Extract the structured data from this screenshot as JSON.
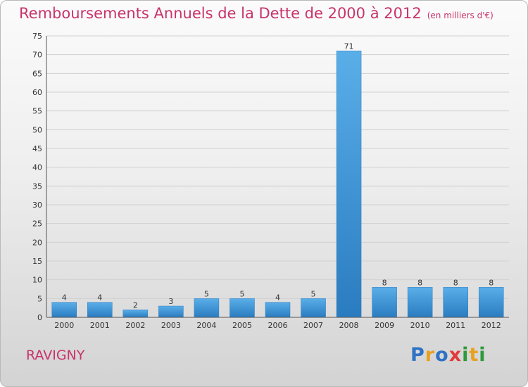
{
  "chart_data": {
    "type": "bar",
    "title": "Remboursements Annuels de la Dette de 2000 à 2012",
    "subtitle": "(en milliers d'€)",
    "categories": [
      "2000",
      "2001",
      "2002",
      "2003",
      "2004",
      "2005",
      "2006",
      "2007",
      "2008",
      "2009",
      "2010",
      "2011",
      "2012"
    ],
    "values": [
      4,
      4,
      2,
      3,
      5,
      5,
      4,
      5,
      71,
      8,
      8,
      8,
      8
    ],
    "ylim": [
      0,
      75
    ],
    "yticks": [
      0,
      5,
      10,
      15,
      20,
      25,
      30,
      35,
      40,
      45,
      50,
      55,
      60,
      65,
      70,
      75
    ],
    "xlabel": "",
    "ylabel": "",
    "grid": true,
    "legend": "none",
    "bar_color": "#3f95d8",
    "grid_color": "#d0d0d0"
  },
  "commune": "RAVIGNY",
  "logo_text": "Proxiti",
  "colors": {
    "accent": "#c8336a"
  }
}
